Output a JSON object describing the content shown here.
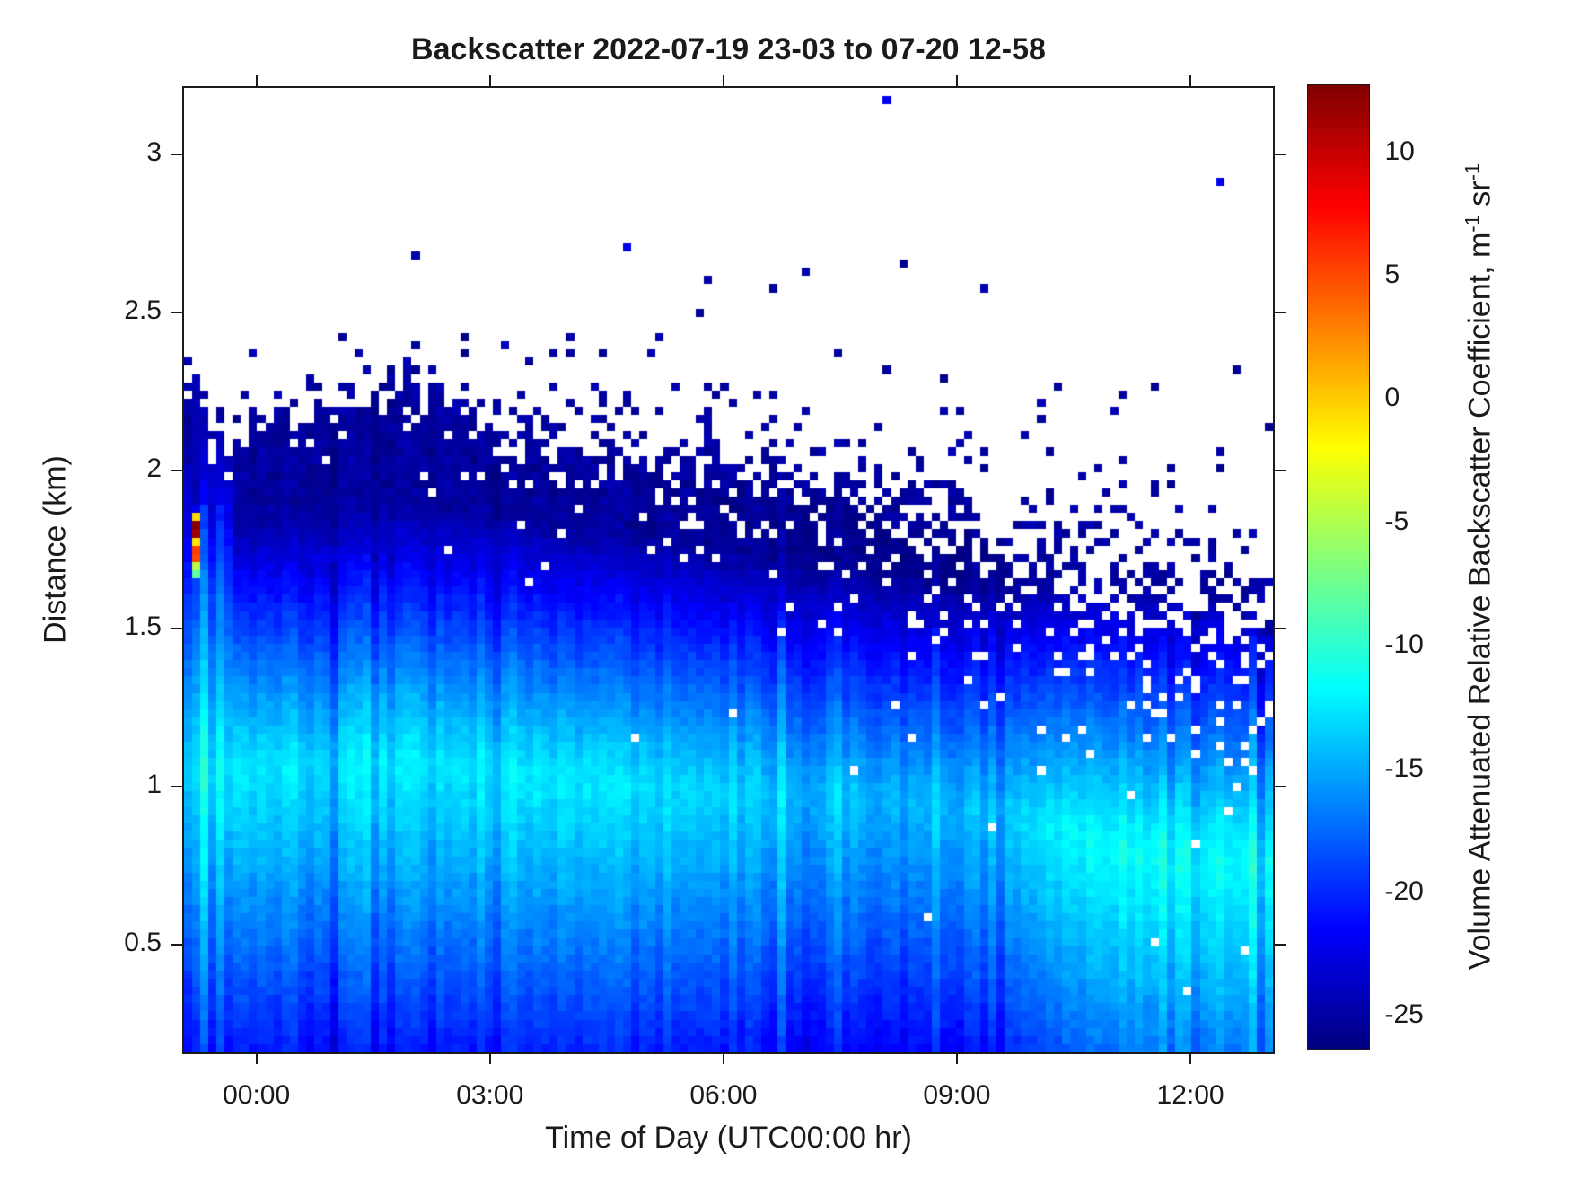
{
  "figure": {
    "background": "#ffffff",
    "axis_color": "#1a1a1a"
  },
  "chart_data": {
    "type": "heatmap",
    "title": "Backscatter 2022-07-19 23-03 to 07-20 12-58",
    "xlabel": "Time of Day (UTC00:00 hr)",
    "ylabel": "Distance (km)",
    "x_range_hours": [
      -0.93,
      13.06
    ],
    "y_range_km": [
      0.159,
      3.21
    ],
    "x_ticks": [
      {
        "hour": 0,
        "label": "00:00"
      },
      {
        "hour": 3,
        "label": "03:00"
      },
      {
        "hour": 6,
        "label": "06:00"
      },
      {
        "hour": 9,
        "label": "09:00"
      },
      {
        "hour": 12,
        "label": "12:00"
      }
    ],
    "y_ticks": [
      {
        "km": 3,
        "label": "3"
      },
      {
        "km": 2.5,
        "label": "2.5"
      },
      {
        "km": 2,
        "label": "2"
      },
      {
        "km": 1.5,
        "label": "1.5"
      },
      {
        "km": 1,
        "label": "1"
      },
      {
        "km": 0.5,
        "label": "0.5"
      }
    ],
    "colorbar": {
      "colormap": "jet",
      "vmin": -26.31,
      "vmax": 12.73,
      "ticks": [
        {
          "v": 10,
          "label": "10"
        },
        {
          "v": 5,
          "label": "5"
        },
        {
          "v": 0,
          "label": "0"
        },
        {
          "v": -5,
          "label": "-5"
        },
        {
          "v": -10,
          "label": "-10"
        },
        {
          "v": -15,
          "label": "-15"
        },
        {
          "v": -20,
          "label": "-20"
        },
        {
          "v": -25,
          "label": "-25"
        }
      ],
      "label_main": "Volume Attenuated Relative Backscatter Coefficient, m",
      "label_sup1": "-1",
      "label_mid": " sr",
      "label_sup2": "-1"
    },
    "field": {
      "seed": 7,
      "ncols": 134,
      "nrows": 118,
      "bl_top_km": [
        [
          -0.93,
          2.15
        ],
        [
          0,
          2.12
        ],
        [
          1,
          2.18
        ],
        [
          2,
          2.26
        ],
        [
          2.5,
          2.22
        ],
        [
          3,
          2.12
        ],
        [
          4,
          2.08
        ],
        [
          5,
          2.03
        ],
        [
          6,
          1.99
        ],
        [
          7,
          1.94
        ],
        [
          8,
          1.88
        ],
        [
          9,
          1.8
        ],
        [
          9.5,
          1.76
        ],
        [
          10,
          1.73
        ],
        [
          11,
          1.64
        ],
        [
          12,
          1.57
        ],
        [
          13.06,
          1.51
        ]
      ],
      "band_center_km": [
        [
          -0.93,
          1.05
        ],
        [
          2,
          1.08
        ],
        [
          4,
          1.02
        ],
        [
          6,
          0.99
        ],
        [
          8,
          0.97
        ],
        [
          9.5,
          0.92
        ],
        [
          10.5,
          0.85
        ],
        [
          11.5,
          0.78
        ],
        [
          13.06,
          0.76
        ]
      ],
      "band_peak_value": [
        [
          -0.93,
          -13
        ],
        [
          1.5,
          -12.4
        ],
        [
          3.5,
          -12.4
        ],
        [
          5.5,
          -13
        ],
        [
          7,
          -13.8
        ],
        [
          8.5,
          -14.2
        ],
        [
          9.8,
          -13.5
        ],
        [
          10.8,
          -12
        ],
        [
          11.8,
          -11.3
        ],
        [
          13.06,
          -11.6
        ]
      ],
      "ambient_offset": [
        [
          -0.93,
          0.2
        ],
        [
          2,
          0.3
        ],
        [
          5,
          0
        ],
        [
          7.5,
          -0.4
        ],
        [
          9,
          -0.6
        ],
        [
          10,
          0
        ],
        [
          11,
          0.3
        ],
        [
          13.06,
          0.2
        ]
      ],
      "width_above_km": 0.62,
      "width_below_km": 1.05,
      "falloff_exp": 1.15,
      "slope": 9.5,
      "navy_floor": -25.3,
      "fringe": {
        "scale0": 0.055,
        "scale_per_hour": 0.011,
        "above_fill": 0.55,
        "hole0": 0.22,
        "hole_per_hour": 0.02,
        "navy_value": -24.2,
        "jitter_km": 0.1
      },
      "column_noise": {
        "smooth": 1.6,
        "dark_streak_prob": 0.09,
        "dark_streak_depth": 1.6,
        "bright_streak_prob": 0.05,
        "bright_streak_gain": 1.0,
        "cell_noise": 1.2
      },
      "left_edge": {
        "t_end": -0.35,
        "bright_even": 1.9,
        "dim_odd": -0.25,
        "width_above_mult": 1.35,
        "jitter_km": 0.3
      },
      "cloud": {
        "t": -0.73,
        "column_top_km": 2.3,
        "cells": [
          [
            1.85,
            -0.5
          ],
          [
            1.82,
            12.5
          ],
          [
            1.8,
            11.5
          ],
          [
            1.77,
            -1
          ],
          [
            1.75,
            5.5
          ],
          [
            1.72,
            5
          ],
          [
            1.69,
            -4.5
          ],
          [
            1.66,
            -8
          ]
        ]
      },
      "isolated_points": [
        {
          "t": 4.74,
          "h": 2.71,
          "v": -22
        },
        {
          "t": 8.06,
          "h": 3.17,
          "v": -22
        },
        {
          "t": 12.33,
          "h": 2.91,
          "v": -22
        }
      ]
    }
  }
}
